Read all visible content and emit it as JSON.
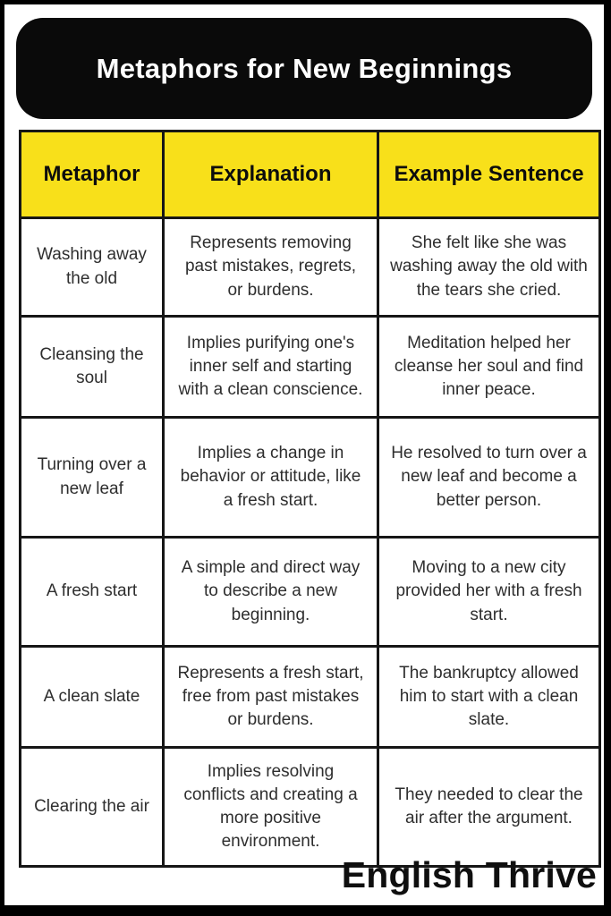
{
  "header": {
    "title": "Metaphors for New Beginnings"
  },
  "table": {
    "headers": [
      "Metaphor",
      "Explanation",
      "Example Sentence"
    ],
    "rows": [
      {
        "metaphor": "Washing away the old",
        "explanation": "Represents removing past mistakes, regrets, or burdens.",
        "example": "She felt like she was washing away the old with the tears she cried."
      },
      {
        "metaphor": "Cleansing the soul",
        "explanation": "Implies purifying one's inner self and starting with a clean conscience.",
        "example": "Meditation helped her cleanse her soul and find inner peace."
      },
      {
        "metaphor": "Turning over a new leaf",
        "explanation": "Implies a change in behavior or attitude, like a fresh start.",
        "example": "He resolved to turn over a new leaf and become a better person."
      },
      {
        "metaphor": "A fresh start",
        "explanation": "A simple and direct way to describe a new beginning.",
        "example": "Moving to a new city provided her with a fresh start."
      },
      {
        "metaphor": "A clean slate",
        "explanation": "Represents a fresh start, free from past mistakes or burdens.",
        "example": "The bankruptcy allowed him to start with a clean slate."
      },
      {
        "metaphor": "Clearing the air",
        "explanation": "Implies resolving conflicts and creating a more positive environment.",
        "example": "They needed to clear the air after the argument."
      }
    ]
  },
  "footer": {
    "brand": "English Thrive"
  },
  "colors": {
    "accent_yellow": "#F8E01A",
    "frame_black": "#000000",
    "banner_black": "#0A0A0A",
    "table_border": "#161616",
    "body_text": "#2E2E2E",
    "title_text": "#FFFFFF"
  }
}
